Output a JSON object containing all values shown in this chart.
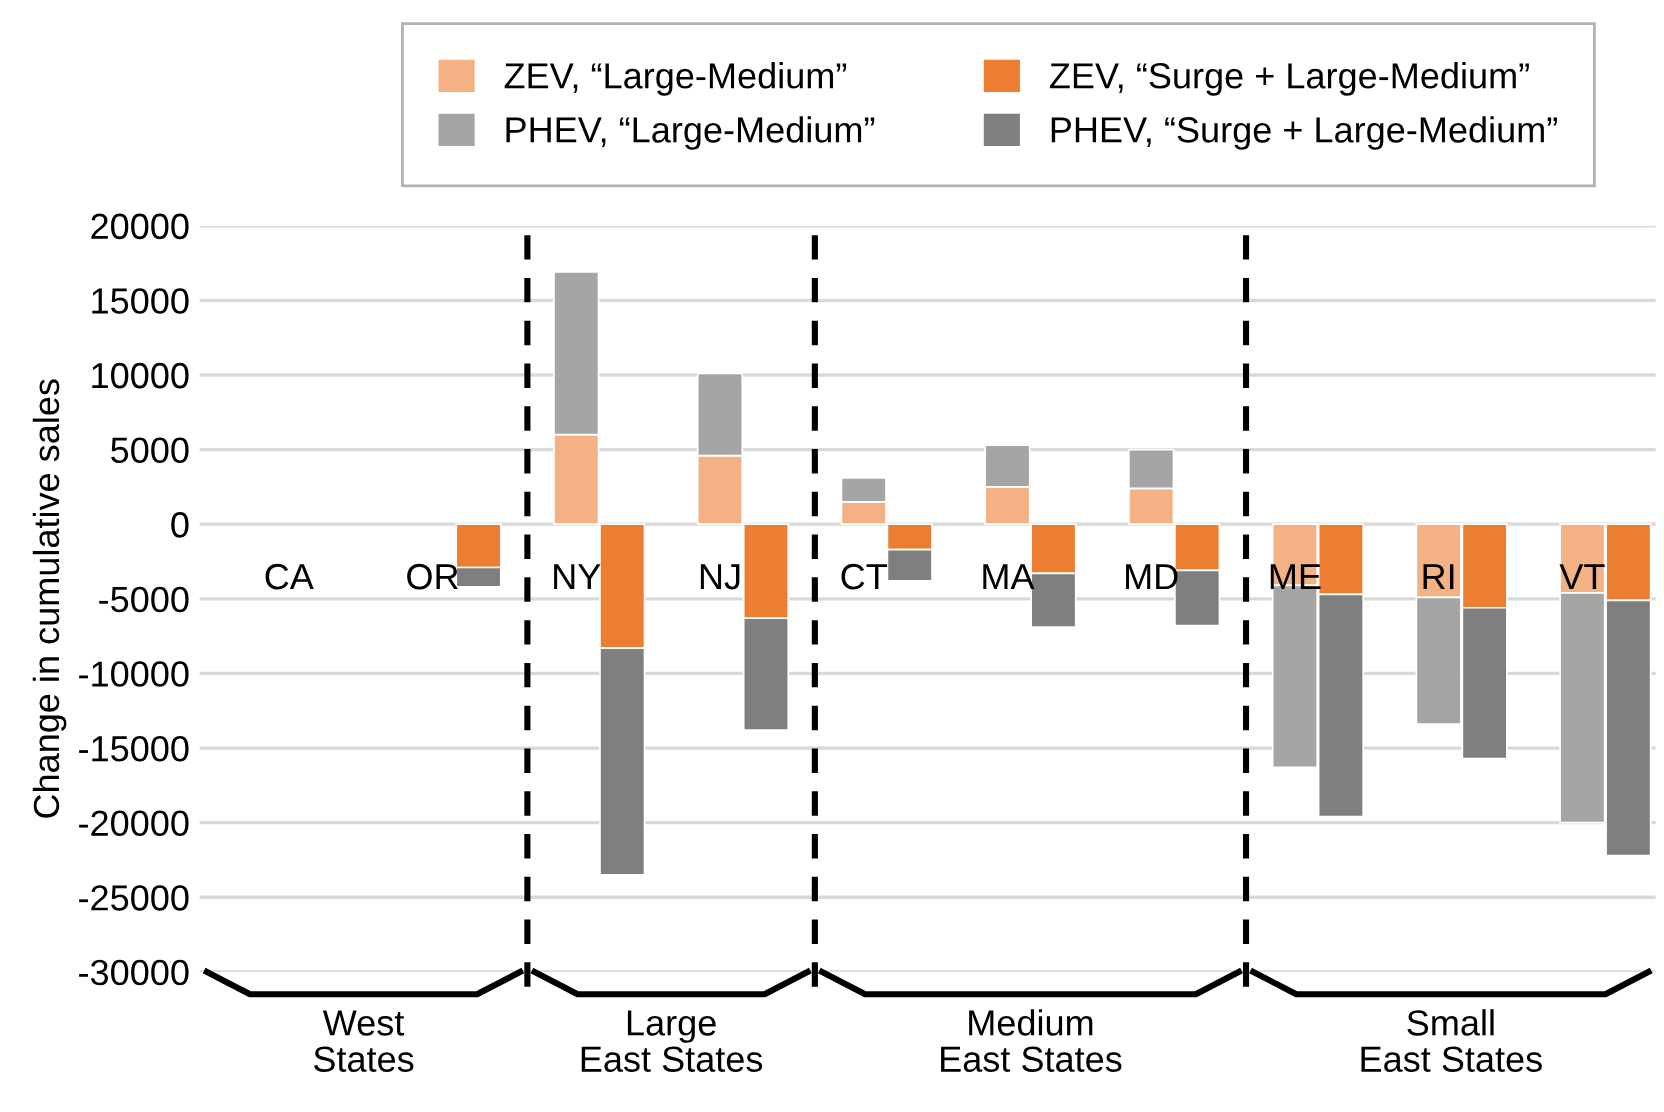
{
  "chart_data": {
    "type": "bar",
    "stacked": true,
    "ylabel": "Change in cumulative sales",
    "categories": [
      "CA",
      null,
      "OR",
      null,
      "NY",
      null,
      "NJ",
      null,
      "CT",
      null,
      "MA",
      null,
      "MD",
      null,
      "ME",
      null,
      "RI",
      null,
      "VT",
      null
    ],
    "series": [
      {
        "name": "ZEV, “Large-Medium”",
        "color": "#f4b183",
        "values": [
          0,
          null,
          0,
          null,
          6000,
          null,
          4600,
          null,
          1500,
          null,
          2500,
          null,
          2400,
          null,
          -4100,
          null,
          -4900,
          null,
          -4600,
          null
        ]
      },
      {
        "name": "PHEV, “Large-Medium”",
        "color": "#a5a5a5",
        "values": [
          0,
          null,
          0,
          null,
          10900,
          null,
          5500,
          null,
          1600,
          null,
          2800,
          null,
          2600,
          null,
          -12200,
          null,
          -8500,
          null,
          -15400,
          null
        ]
      },
      {
        "name": "ZEV, “Surge + Large-Medium”",
        "color": "#ed7d31",
        "values": [
          null,
          0,
          null,
          -2900,
          null,
          -8300,
          null,
          -6300,
          null,
          -1700,
          null,
          -3300,
          null,
          -3100,
          null,
          -4700,
          null,
          -5600,
          null,
          -5100
        ]
      },
      {
        "name": "PHEV, “Surge + Large-Medium”",
        "color": "#7f7f7f",
        "values": [
          null,
          0,
          null,
          -1300,
          null,
          -15200,
          null,
          -7500,
          null,
          -2100,
          null,
          -3600,
          null,
          -3700,
          null,
          -14900,
          null,
          -10100,
          null,
          -17100
        ]
      }
    ],
    "ylim": [
      -30000,
      20000
    ],
    "yticks": [
      -30000,
      -25000,
      -20000,
      -15000,
      -10000,
      -5000,
      0,
      5000,
      10000,
      15000,
      20000
    ],
    "grid": "y",
    "legend": "top",
    "annotations": [
      "West\nStates",
      "Large\nEast States",
      "Medium\nEast States",
      "Small\nEast States"
    ]
  }
}
